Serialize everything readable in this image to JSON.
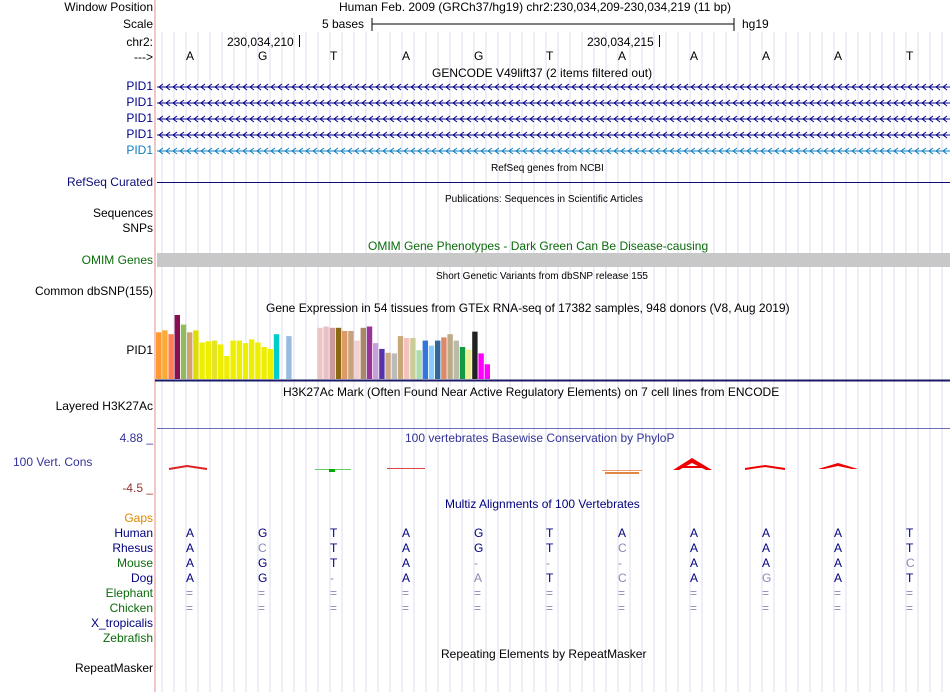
{
  "header": {
    "window_position_label": "Window Position",
    "window_position_value": "Human Feb. 2009 (GRCh37/hg19)   chr2:230,034,209-230,034,219 (11 bp)",
    "scale_label": "Scale",
    "scale_text": "5 bases",
    "assembly": "hg19",
    "chrom_label": "chr2:",
    "coord_1": "230,034,210",
    "coord_2": "230,034,215",
    "strand_label": "--->",
    "bases": [
      "A",
      "G",
      "T",
      "A",
      "G",
      "T",
      "A",
      "A",
      "A",
      "A",
      "T"
    ]
  },
  "tracks": {
    "gencode": {
      "title": "GENCODE V49lift37 (2 items filtered out)",
      "items": [
        "PID1",
        "PID1",
        "PID1",
        "PID1",
        "PID1"
      ],
      "colors": [
        "#00008c",
        "#00008c",
        "#00008c",
        "#00008c",
        "#0b7ec0"
      ]
    },
    "refseq": {
      "title": "RefSeq genes from NCBI",
      "label": "RefSeq Curated",
      "color": "#0c0c78"
    },
    "publications": {
      "title": "Publications: Sequences in Scientific Articles",
      "label1": "Sequences",
      "label2": "SNPs"
    },
    "omim": {
      "title": "OMIM Gene Phenotypes - Dark Green Can Be Disease-causing",
      "label": "OMIM Genes",
      "color": "#0b6b0b",
      "bar_color": "#c8c8c8"
    },
    "dbsnp": {
      "title": "Short Genetic Variants from dbSNP release 155",
      "label": "Common dbSNP(155)"
    },
    "gtex": {
      "title": "Gene Expression in 54 tissues from GTEx RNA-seq of 17382 samples, 948 donors (V8, Aug 2019)",
      "label": "PID1",
      "values": [
        0.73,
        0.76,
        0.7,
        1.0,
        0.85,
        0.73,
        0.76,
        0.57,
        0.59,
        0.6,
        0.54,
        0.36,
        0.6,
        0.6,
        0.56,
        0.62,
        0.57,
        0.5,
        0.47,
        0.7,
        0.0,
        0.67,
        0.0,
        0.0,
        0.0,
        0.0,
        0.8,
        0.82,
        0.8,
        0.8,
        0.75,
        0.75,
        0.6,
        0.8,
        0.82,
        0.56,
        0.47,
        0.41,
        0.4,
        0.67,
        0.64,
        0.64,
        0.45,
        0.6,
        0.52,
        0.6,
        0.65,
        0.7,
        0.6,
        0.5,
        0.46,
        0.74,
        0.4,
        0.23
      ],
      "colors": [
        "#ff9933",
        "#ffaa33",
        "#ff7f50",
        "#880e4f",
        "#8fbc5f",
        "#d2a36f",
        "#dddd00",
        "#eeee00",
        "#eeee00",
        "#e3e32a",
        "#eeee00",
        "#eeee00",
        "#eeee00",
        "#eeee00",
        "#eeee00",
        "#eeee00",
        "#eeee00",
        "#eeee00",
        "#eeee00",
        "#00cccc",
        "#ffffff",
        "#99bbdd",
        "#ffffff",
        "#ffffff",
        "#ffffff",
        "#ffffff",
        "#eec5c5",
        "#e8c0c8",
        "#cc9999",
        "#8b6914",
        "#dd9966",
        "#c8a27a",
        "#f5d0d0",
        "#aa8866",
        "#993399",
        "#c8a0d8",
        "#5533aa",
        "#ccaa88",
        "#bbbbbb",
        "#c8a878",
        "#f4c0c0",
        "#cccc99",
        "#aaddaa",
        "#3377dd",
        "#88ccff",
        "#336699",
        "#dd8866",
        "#bbaa88",
        "#bbbbaa",
        "#119944",
        "#eeee99",
        "#222222",
        "#ff00ff",
        "#ff00ff"
      ]
    },
    "h3k27ac": {
      "title": "H3K27Ac Mark (Often Found Near Active Regulatory Elements) on 7 cell lines from ENCODE",
      "label": "Layered H3K27Ac"
    },
    "phylop": {
      "title": "100 vertebrates Basewise Conservation by PhyloP",
      "label": "100 Vert. Cons",
      "max": "4.88 _",
      "min": "-4.5 _"
    },
    "multiz": {
      "title": "Multiz Alignments of 100 Vertebrates",
      "gaps_label": "Gaps",
      "species": [
        {
          "name": "Human",
          "color": "#000080",
          "bases": [
            "A",
            "G",
            "T",
            "A",
            "G",
            "T",
            "A",
            "A",
            "A",
            "A",
            "T"
          ],
          "faint": [
            false,
            false,
            false,
            false,
            false,
            false,
            false,
            false,
            false,
            false,
            false
          ]
        },
        {
          "name": "Rhesus",
          "color": "#000080",
          "bases": [
            "A",
            "C",
            "T",
            "A",
            "G",
            "T",
            "C",
            "A",
            "A",
            "A",
            "T"
          ],
          "faint": [
            false,
            true,
            false,
            false,
            false,
            false,
            true,
            false,
            false,
            false,
            false
          ]
        },
        {
          "name": "Mouse",
          "color": "#0b6b0b",
          "bases": [
            "A",
            "G",
            "T",
            "A",
            "-",
            "-",
            "-",
            "A",
            "A",
            "A",
            "C"
          ],
          "faint": [
            false,
            false,
            false,
            false,
            true,
            true,
            true,
            false,
            false,
            false,
            true
          ]
        },
        {
          "name": "Dog",
          "color": "#000080",
          "bases": [
            "A",
            "G",
            "-",
            "A",
            "A",
            "T",
            "C",
            "A",
            "G",
            "A",
            "T"
          ],
          "faint": [
            false,
            false,
            true,
            false,
            true,
            false,
            true,
            false,
            true,
            false,
            false
          ]
        },
        {
          "name": "Elephant",
          "color": "#0b6b0b",
          "bases": [
            "=",
            "=",
            "=",
            "=",
            "=",
            "=",
            "=",
            "=",
            "=",
            "=",
            "="
          ],
          "faint": [
            true,
            true,
            true,
            true,
            true,
            true,
            true,
            true,
            true,
            true,
            true
          ]
        },
        {
          "name": "Chicken",
          "color": "#0b6b0b",
          "bases": [
            "=",
            "=",
            "=",
            "=",
            "=",
            "=",
            "=",
            "=",
            "=",
            "=",
            "="
          ],
          "faint": [
            true,
            true,
            true,
            true,
            true,
            true,
            true,
            true,
            true,
            true,
            true
          ]
        },
        {
          "name": "X_tropicalis",
          "color": "#000080",
          "bases": [],
          "faint": []
        },
        {
          "name": "Zebrafish",
          "color": "#0b6b0b",
          "bases": [],
          "faint": []
        }
      ]
    },
    "repeatmasker": {
      "title": "Repeating Elements by RepeatMasker",
      "label": "RepeatMasker"
    }
  }
}
